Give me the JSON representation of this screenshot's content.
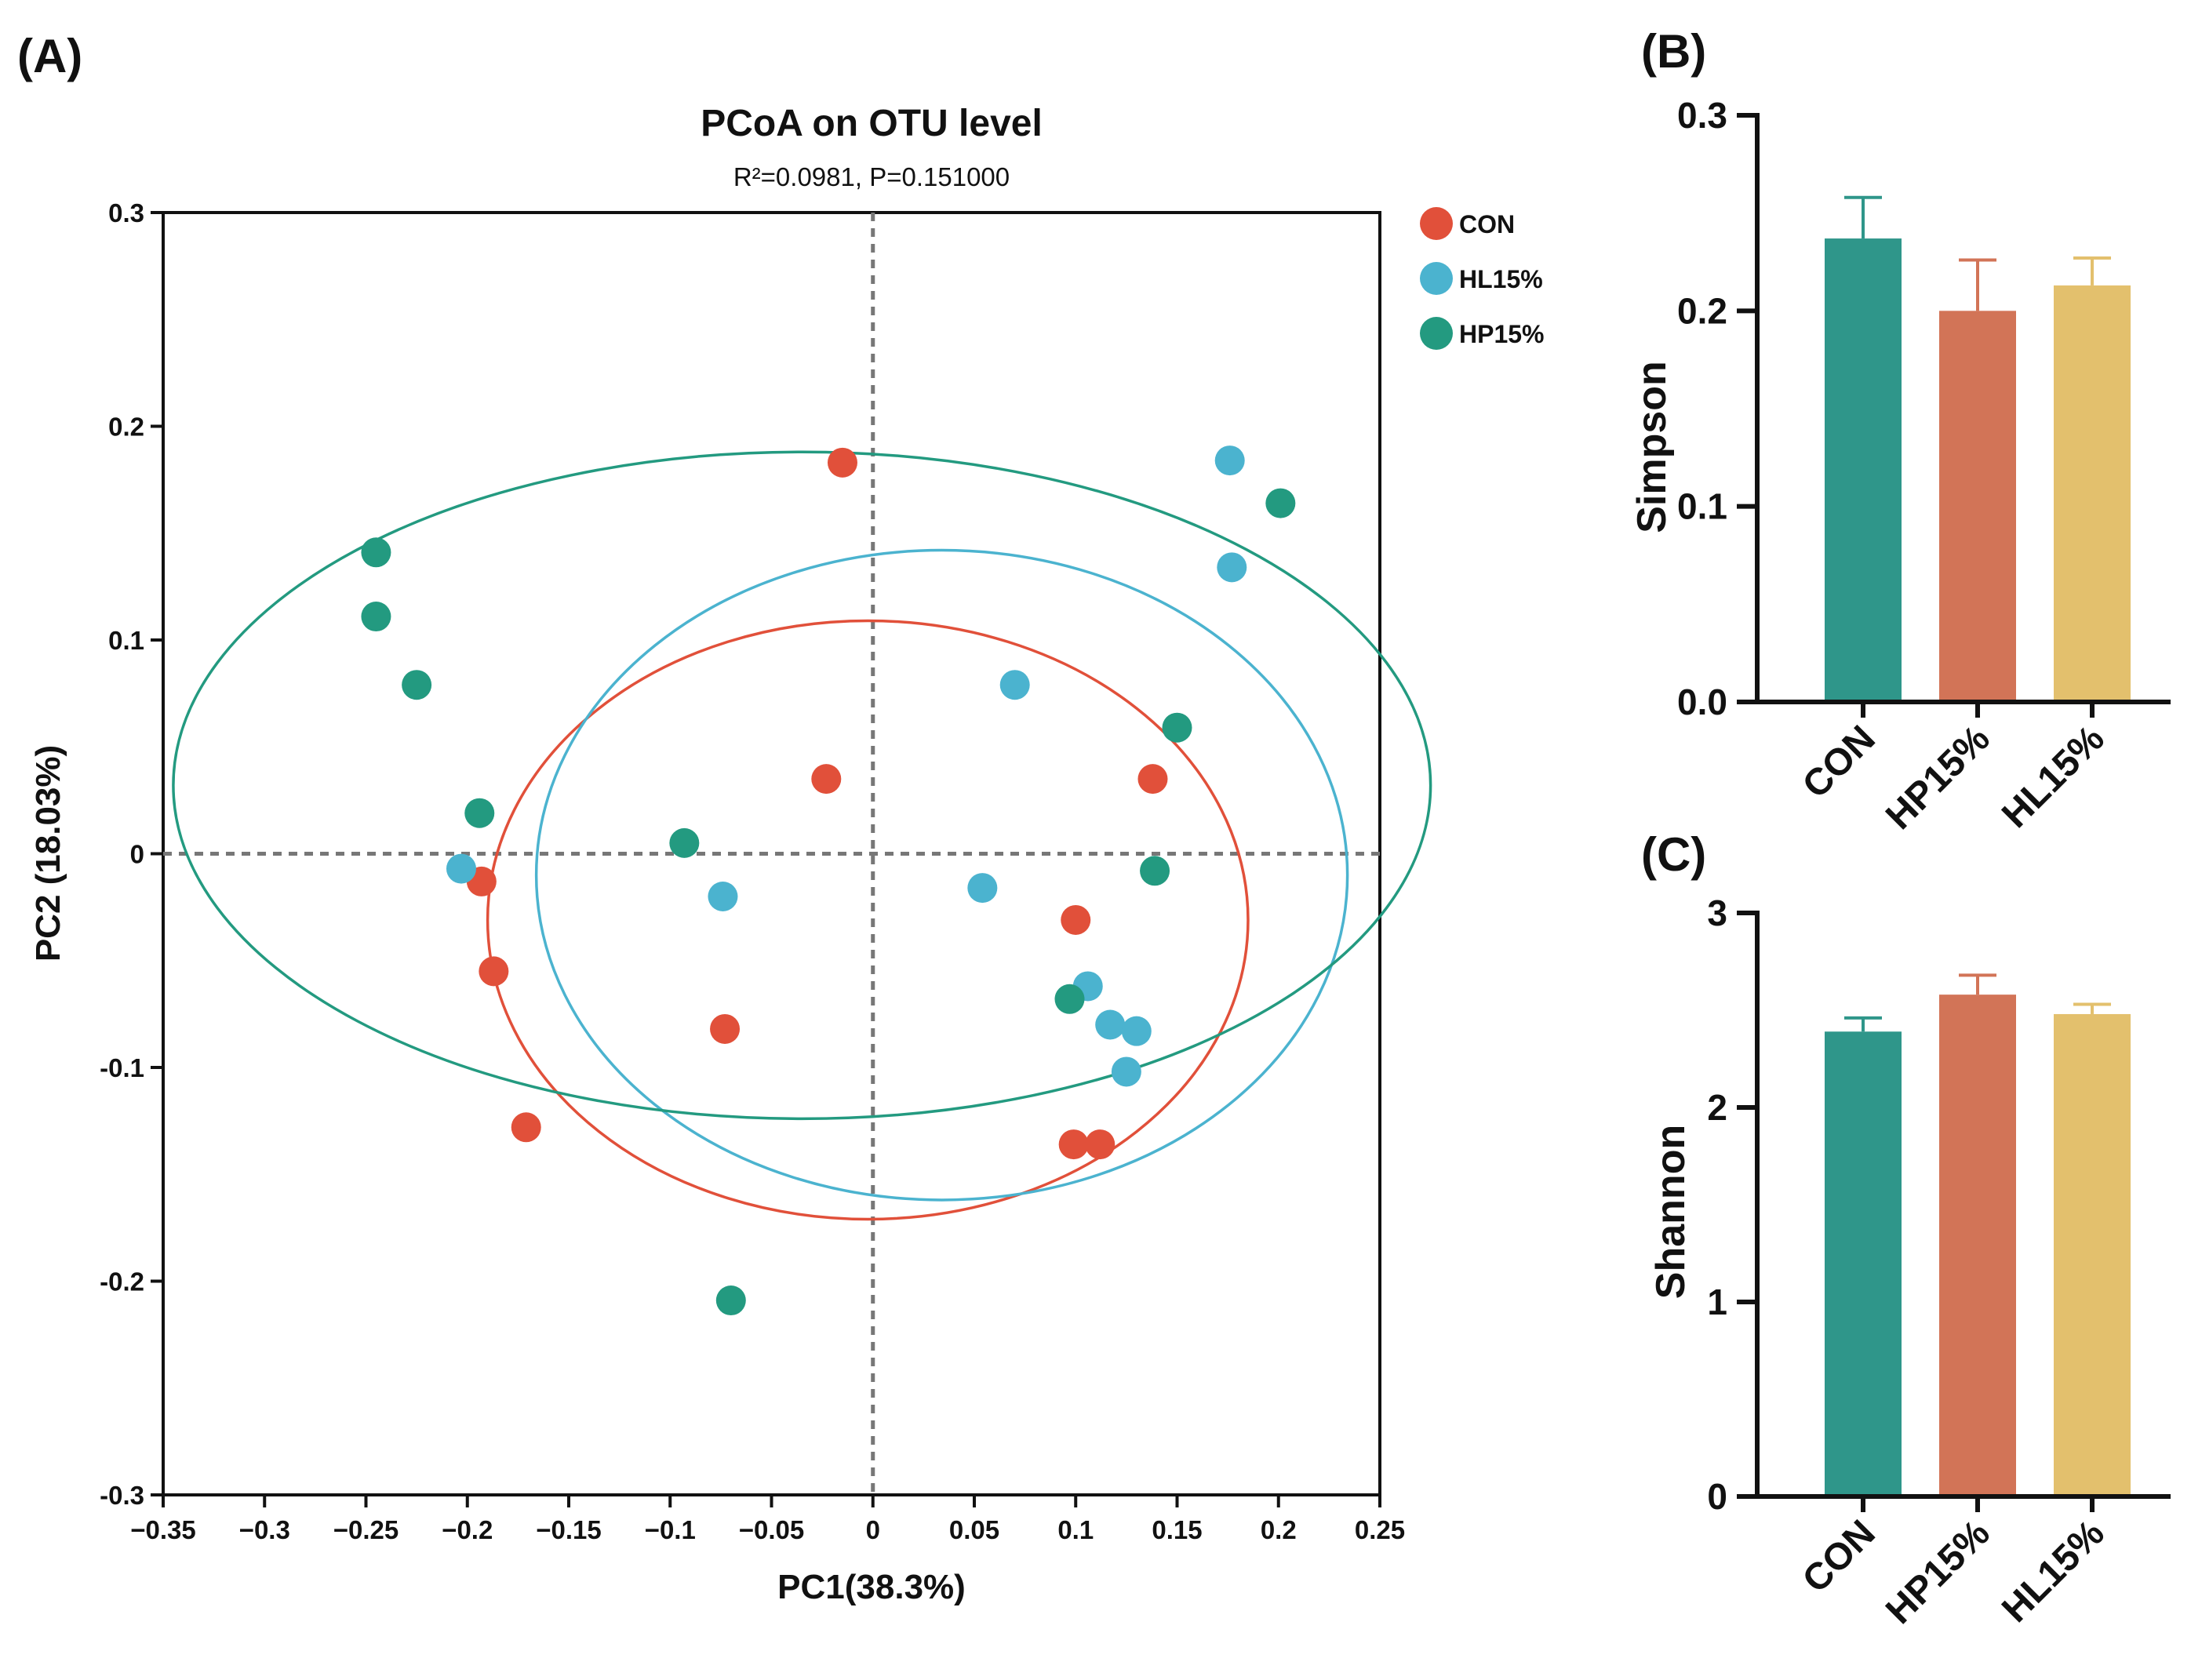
{
  "chart_data": [
    {
      "type": "scatter",
      "panel_label": "(A)",
      "title": "PCoA on OTU level",
      "subtitle": "R²=0.0981, P=0.151000",
      "xlabel": "PC1(38.3%)",
      "ylabel": "PC2 (18.03%)",
      "xlim": [
        -0.35,
        0.25
      ],
      "ylim": [
        -0.3,
        0.3
      ],
      "xticks": [
        -0.35,
        -0.3,
        -0.25,
        -0.2,
        -0.15,
        -0.1,
        -0.05,
        0,
        0.05,
        0.1,
        0.15,
        0.2,
        0.25
      ],
      "xtick_labels": [
        "−0.35",
        "−0.3",
        "−0.25",
        "−0.2",
        "−0.15",
        "−0.1",
        "−0.05",
        "0",
        "0.05",
        "0.1",
        "0.15",
        "0.2",
        "0.25"
      ],
      "yticks": [
        -0.3,
        -0.2,
        -0.1,
        0,
        0.1,
        0.2,
        0.3
      ],
      "ytick_labels": [
        "-0.3",
        "-0.2",
        "-0.1",
        "0",
        "0.1",
        "0.2",
        "0.3"
      ],
      "reference_lines": {
        "x": 0,
        "y": 0,
        "style": "dashed"
      },
      "legend_position": "top-right",
      "series": [
        {
          "name": "CON",
          "color": "#E1503A",
          "points": [
            [
              -0.015,
              0.183
            ],
            [
              -0.023,
              0.035
            ],
            [
              -0.193,
              -0.013
            ],
            [
              -0.187,
              -0.055
            ],
            [
              -0.073,
              -0.082
            ],
            [
              -0.171,
              -0.128
            ],
            [
              0.099,
              -0.136
            ],
            [
              0.112,
              -0.136
            ],
            [
              0.1,
              -0.031
            ],
            [
              0.138,
              0.035
            ]
          ],
          "ellipse": {
            "cx": -0.0025,
            "cy": -0.031,
            "rx": 0.1875,
            "ry": 0.14
          }
        },
        {
          "name": "HL15%",
          "color": "#4BB3CF",
          "points": [
            [
              0.176,
              0.184
            ],
            [
              0.177,
              0.134
            ],
            [
              0.07,
              0.079
            ],
            [
              -0.203,
              -0.007
            ],
            [
              -0.074,
              -0.02
            ],
            [
              0.054,
              -0.016
            ],
            [
              0.106,
              -0.062
            ],
            [
              0.117,
              -0.08
            ],
            [
              0.13,
              -0.083
            ],
            [
              0.125,
              -0.102
            ]
          ],
          "ellipse": {
            "cx": 0.034,
            "cy": -0.01,
            "rx": 0.2,
            "ry": 0.152
          }
        },
        {
          "name": "HP15%",
          "color": "#239A80",
          "points": [
            [
              -0.245,
              0.141
            ],
            [
              -0.245,
              0.111
            ],
            [
              -0.225,
              0.079
            ],
            [
              -0.194,
              0.019
            ],
            [
              -0.093,
              0.005
            ],
            [
              -0.07,
              -0.209
            ],
            [
              0.097,
              -0.068
            ],
            [
              0.139,
              -0.008
            ],
            [
              0.15,
              0.059
            ],
            [
              0.201,
              0.164
            ]
          ],
          "ellipse": {
            "cx": -0.035,
            "cy": 0.032,
            "rx": 0.31,
            "ry": 0.156
          }
        }
      ]
    },
    {
      "type": "bar",
      "panel_label": "(B)",
      "ylabel": "Simpson",
      "categories": [
        "CON",
        "HP15%",
        "HL15%"
      ],
      "values": [
        0.237,
        0.2,
        0.213
      ],
      "errors": [
        0.021,
        0.026,
        0.014
      ],
      "colors": [
        "#2F968A",
        "#D27457",
        "#E3C06D"
      ],
      "ylim": [
        0,
        0.3
      ],
      "yticks": [
        0,
        0.1,
        0.2,
        0.3
      ],
      "ytick_labels": [
        "0.0",
        "0.1",
        "0.2",
        "0.3"
      ]
    },
    {
      "type": "bar",
      "panel_label": "(C)",
      "ylabel": "Shannon",
      "categories": [
        "CON",
        "HP15%",
        "HL15%"
      ],
      "values": [
        2.39,
        2.58,
        2.48
      ],
      "errors": [
        0.07,
        0.1,
        0.05
      ],
      "colors": [
        "#2F968A",
        "#D27457",
        "#E3C06D"
      ],
      "ylim": [
        0,
        3
      ],
      "yticks": [
        0,
        1,
        2,
        3
      ],
      "ytick_labels": [
        "0",
        "1",
        "2",
        "3"
      ]
    }
  ]
}
